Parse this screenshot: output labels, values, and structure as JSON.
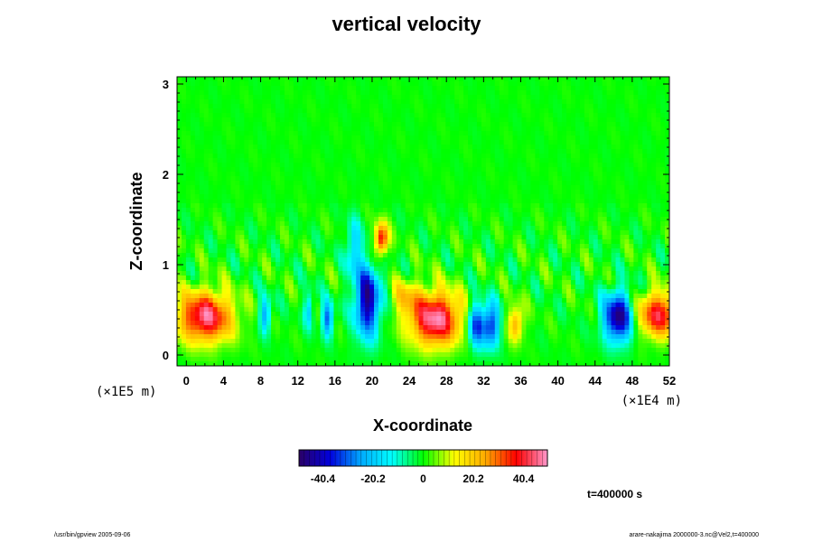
{
  "chart_data": {
    "type": "heatmap",
    "title": "vertical velocity",
    "xlabel": "X-coordinate",
    "ylabel": "Z-coordinate",
    "x_scale_label": "(×1E4 m)",
    "z_scale_label": "(×1E5 m)",
    "xlim": [
      -1,
      52
    ],
    "zlim": [
      -0.12,
      3.08
    ],
    "x_ticks": [
      "0",
      "4",
      "8",
      "12",
      "16",
      "20",
      "24",
      "28",
      "32",
      "36",
      "40",
      "44",
      "48",
      "52"
    ],
    "z_ticks": [
      "0",
      "1",
      "2",
      "3"
    ],
    "colorbar": {
      "range": [
        -50,
        50
      ],
      "ticks": [
        "-40.4",
        "-20.2",
        "0",
        "20.2",
        "40.4"
      ],
      "tick_values": [
        -40.4,
        -20.2,
        0,
        20.2,
        40.4
      ],
      "colors": [
        "#2a0066",
        "#0000dd",
        "#00aaff",
        "#00ffff",
        "#00ff00",
        "#ffff00",
        "#ffaa00",
        "#ff0000",
        "#ff99cc"
      ]
    },
    "features": [
      {
        "x": 2.0,
        "z": 0.42,
        "value": 45,
        "rx": 3.0,
        "rz": 0.28
      },
      {
        "x": 26.8,
        "z": 0.4,
        "value": 48,
        "rx": 2.8,
        "rz": 0.3
      },
      {
        "x": 51.0,
        "z": 0.45,
        "value": 40,
        "rx": 2.5,
        "rz": 0.25
      },
      {
        "x": 46.5,
        "z": 0.42,
        "value": -48,
        "rx": 1.6,
        "rz": 0.28
      },
      {
        "x": 31.2,
        "z": 0.33,
        "value": -35,
        "rx": 0.9,
        "rz": 0.25
      },
      {
        "x": 32.8,
        "z": 0.33,
        "value": -35,
        "rx": 0.9,
        "rz": 0.25
      },
      {
        "x": 19.5,
        "z": 0.6,
        "value": -45,
        "rx": 1.4,
        "rz": 0.4
      },
      {
        "x": 15.2,
        "z": 0.4,
        "value": -30,
        "rx": 0.6,
        "rz": 0.2
      },
      {
        "x": 8.5,
        "z": 0.45,
        "value": -25,
        "rx": 0.6,
        "rz": 0.2
      },
      {
        "x": 21.0,
        "z": 1.28,
        "value": 42,
        "rx": 0.7,
        "rz": 0.18
      },
      {
        "x": 35.5,
        "z": 0.35,
        "value": 25,
        "rx": 0.8,
        "rz": 0.2
      },
      {
        "x": 13.2,
        "z": 0.5,
        "value": -20,
        "rx": 0.5,
        "rz": 0.2
      },
      {
        "x": 23.5,
        "z": 0.65,
        "value": 15,
        "rx": 1.5,
        "rz": 0.2
      },
      {
        "x": 18.0,
        "z": 1.2,
        "value": -20,
        "rx": 0.8,
        "rz": 0.3
      }
    ]
  },
  "time_label": "t=400000 s",
  "footer_left": "/usr/bin/gpview 2005-09-06",
  "footer_right": "arare-nakajima 2000000-3.nc@Vel2,t=400000"
}
